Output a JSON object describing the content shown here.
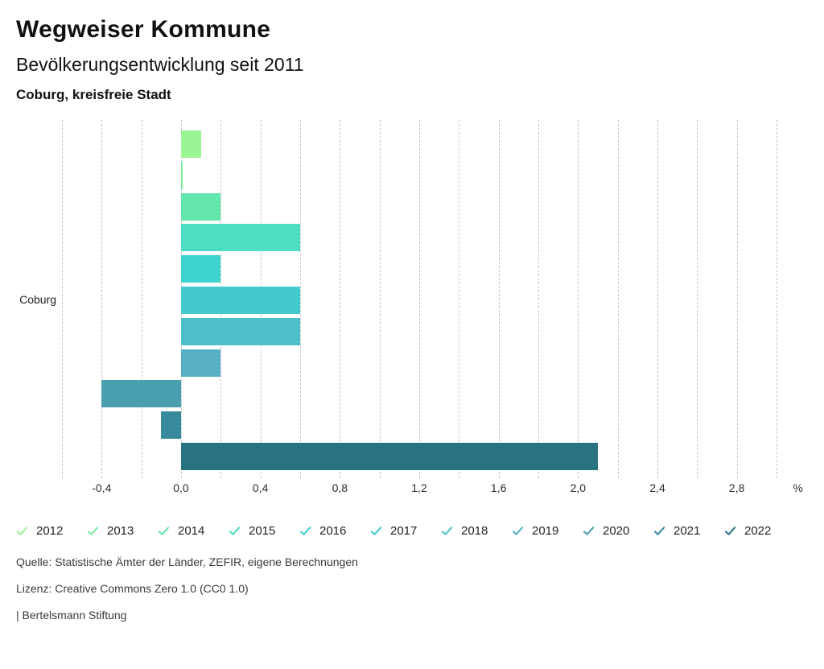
{
  "header": {
    "title": "Wegweiser Kommune",
    "subtitle": "Bevölkerungsentwicklung seit 2011",
    "region": "Coburg, kreisfreie Stadt"
  },
  "chart_data": {
    "type": "bar",
    "orientation": "horizontal",
    "title": "Bevölkerungsentwicklung seit 2011",
    "group_label": "Coburg",
    "categories": [
      "2012",
      "2013",
      "2014",
      "2015",
      "2016",
      "2017",
      "2018",
      "2019",
      "2020",
      "2021",
      "2022"
    ],
    "values": [
      0.1,
      0.01,
      0.2,
      0.6,
      0.2,
      0.6,
      0.6,
      0.2,
      -0.4,
      -0.1,
      2.1
    ],
    "colors": [
      "#9af595",
      "#7eeda0",
      "#63e6ab",
      "#4cddc2",
      "#3ed2cc",
      "#43c9d0",
      "#4dbfca",
      "#58b0c4",
      "#4a9fae",
      "#38899b",
      "#297380"
    ],
    "unit": "%",
    "xlim": [
      -0.6,
      3.0
    ],
    "grid_step": 0.2,
    "grid_on": true,
    "grid_color": "#c6c6c6",
    "tick_values": [
      -0.4,
      0.0,
      0.4,
      0.8,
      1.2,
      1.6,
      2.0,
      2.4,
      2.8
    ],
    "tick_labels": [
      "-0,4",
      "0,0",
      "0,4",
      "0,8",
      "1,2",
      "1,6",
      "2,0",
      "2,4",
      "2,8"
    ],
    "axis_unit_label": "%",
    "legend_position": "bottom",
    "legend_entries": [
      "2012",
      "2013",
      "2014",
      "2015",
      "2016",
      "2017",
      "2018",
      "2019",
      "2020",
      "2021",
      "2022"
    ]
  },
  "footer": {
    "source": "Quelle: Statistische Ämter der Länder, ZEFIR, eigene Berechnungen",
    "license": "Lizenz: Creative Commons Zero 1.0 (CC0 1.0)",
    "attribution": "| Bertelsmann Stiftung"
  }
}
